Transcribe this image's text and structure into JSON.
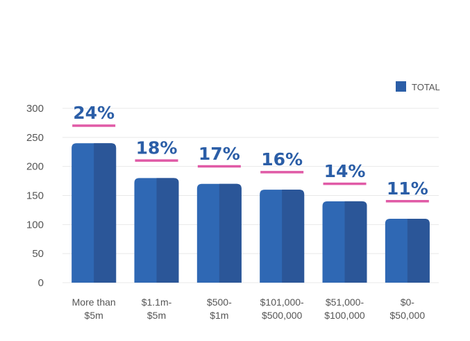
{
  "chart_data": {
    "type": "bar",
    "categories": [
      [
        "More than",
        "$5m"
      ],
      [
        "$1.1m-",
        "$5m"
      ],
      [
        "$500-",
        "$1m"
      ],
      [
        "$101,000-",
        "$500,000"
      ],
      [
        "$51,000-",
        "$100,000"
      ],
      [
        "$0-",
        "$50,000"
      ]
    ],
    "series": [
      {
        "name": "TOTAL",
        "values": [
          240,
          180,
          170,
          160,
          140,
          110
        ]
      }
    ],
    "data_labels": [
      "24%",
      "18%",
      "17%",
      "16%",
      "14%",
      "11%"
    ],
    "yticks": [
      0,
      50,
      100,
      150,
      200,
      250,
      300
    ],
    "ylim": [
      0,
      300
    ],
    "grid": true,
    "legend_position": "top-right",
    "colors": {
      "bar_left": "#2f68b4",
      "bar_right": "#2b5698",
      "label": "#2b5ea7",
      "underline": "#e05aa6",
      "legend": "#2b5ea7",
      "grid": "#e8e8e8"
    }
  }
}
